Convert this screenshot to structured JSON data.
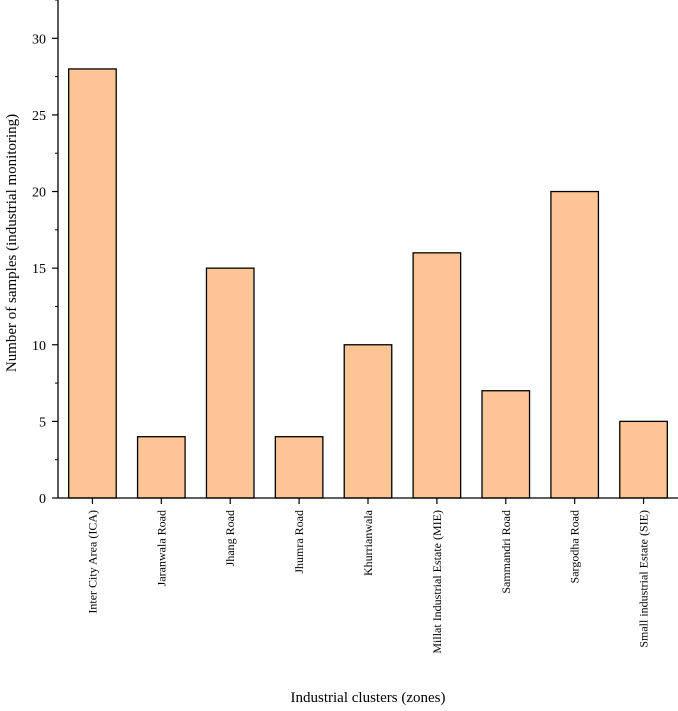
{
  "chart_data": {
    "type": "bar",
    "title": "",
    "xlabel": "Industrial clusters (zones)",
    "ylabel": "Number of samples (industrial monitoring)",
    "ylim": [
      0,
      32.5
    ],
    "yticks": [
      0,
      5,
      10,
      15,
      20,
      25,
      30
    ],
    "grid": false,
    "categories": [
      "Inter City Area (ICA)",
      "Jaranwala Road",
      "Jhang Road",
      "Jhumra Road",
      "Khurrianwala",
      "Millat Industrial Estate (MIE)",
      "Sammandri Road",
      "Sargodha Road",
      "Small industrial Estate (SIE)"
    ],
    "values": [
      28,
      4,
      15,
      4,
      10,
      16,
      7,
      20,
      5
    ],
    "bar_color": "#fdc596",
    "bar_edge_color": "#000000"
  }
}
